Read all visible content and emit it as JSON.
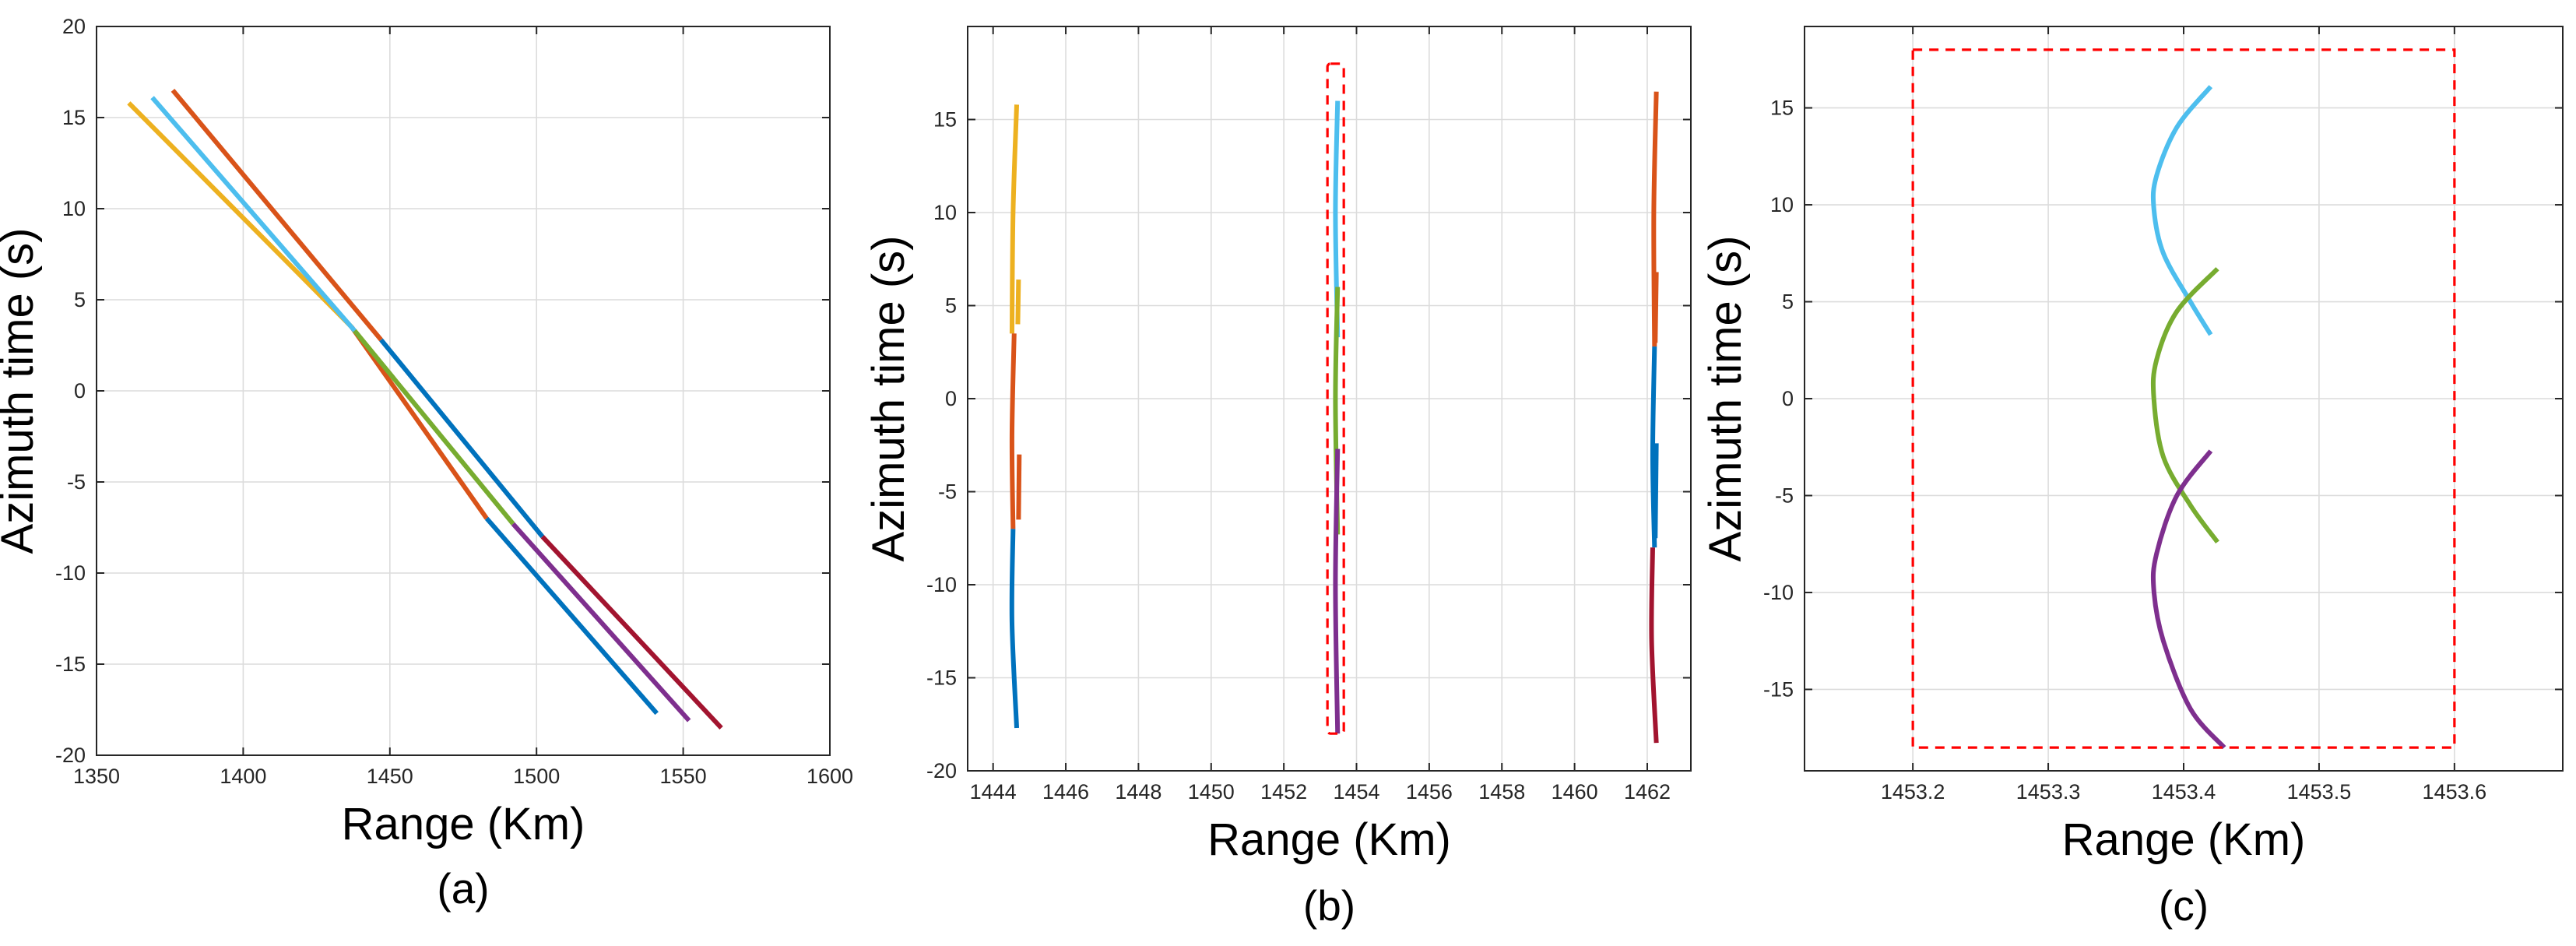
{
  "chart_data": [
    {
      "panel": "a",
      "type": "line",
      "caption": "(a)",
      "xlabel": "Range (Km)",
      "ylabel": "Azimuth time (s)",
      "xlim": [
        1350,
        1600
      ],
      "ylim": [
        -20,
        20
      ],
      "xticks": [
        1350,
        1400,
        1450,
        1500,
        1550,
        1600
      ],
      "yticks": [
        -20,
        -15,
        -10,
        -5,
        0,
        5,
        10,
        15,
        20
      ],
      "grid": true,
      "series": [
        {
          "name": "yellow",
          "color": "#edb120",
          "points": [
            [
              1361,
              15.8
            ],
            [
              1437,
              3.5
            ]
          ]
        },
        {
          "name": "orange-1",
          "color": "#d95319",
          "points": [
            [
              1437,
              3.5
            ],
            [
              1483,
              -7.0
            ]
          ]
        },
        {
          "name": "blue-1",
          "color": "#0072bd",
          "points": [
            [
              1483,
              -7.0
            ],
            [
              1541,
              -17.7
            ]
          ]
        },
        {
          "name": "cyan",
          "color": "#4dbeee",
          "points": [
            [
              1369,
              16.1
            ],
            [
              1438,
              3.3
            ]
          ]
        },
        {
          "name": "green",
          "color": "#77ac30",
          "points": [
            [
              1438,
              3.3
            ],
            [
              1492,
              -7.3
            ]
          ]
        },
        {
          "name": "purple",
          "color": "#7e2f8e",
          "points": [
            [
              1492,
              -7.3
            ],
            [
              1552,
              -18.1
            ]
          ]
        },
        {
          "name": "orange-2",
          "color": "#d95319",
          "points": [
            [
              1376,
              16.5
            ],
            [
              1447,
              2.8
            ]
          ]
        },
        {
          "name": "blue-2",
          "color": "#0072bd",
          "points": [
            [
              1447,
              2.8
            ],
            [
              1502,
              -8.0
            ]
          ]
        },
        {
          "name": "darkred",
          "color": "#a2142f",
          "points": [
            [
              1502,
              -8.0
            ],
            [
              1563,
              -18.5
            ]
          ]
        }
      ],
      "annotations": []
    },
    {
      "panel": "b",
      "type": "line",
      "caption": "(b)",
      "xlabel": "Range (Km)",
      "ylabel": "Azimuth time (s)",
      "xlim": [
        1443.3,
        1463.2
      ],
      "ylim": [
        -20,
        20
      ],
      "xticks": [
        1444,
        1446,
        1448,
        1450,
        1452,
        1454,
        1456,
        1458,
        1460,
        1462
      ],
      "yticks": [
        -20,
        -15,
        -10,
        -5,
        0,
        5,
        10,
        15
      ],
      "grid": true,
      "series": [
        {
          "name": "yellow",
          "color": "#edb120",
          "points": [
            [
              1444.65,
              15.8
            ],
            [
              1444.55,
              10
            ],
            [
              1444.52,
              3.5
            ]
          ]
        },
        {
          "name": "yellow-b",
          "color": "#edb120",
          "points": [
            [
              1444.7,
              6.4
            ],
            [
              1444.68,
              4.0
            ]
          ]
        },
        {
          "name": "orange-1",
          "color": "#d95319",
          "points": [
            [
              1444.58,
              3.5
            ],
            [
              1444.52,
              -2
            ],
            [
              1444.55,
              -7.0
            ]
          ]
        },
        {
          "name": "orange-1b",
          "color": "#d95319",
          "points": [
            [
              1444.72,
              -3.0
            ],
            [
              1444.7,
              -6.5
            ]
          ]
        },
        {
          "name": "blue-1",
          "color": "#0072bd",
          "points": [
            [
              1444.55,
              -7.0
            ],
            [
              1444.52,
              -12
            ],
            [
              1444.65,
              -17.7
            ]
          ]
        },
        {
          "name": "cyan",
          "color": "#4dbeee",
          "points": [
            [
              1453.48,
              16.0
            ],
            [
              1453.42,
              10
            ],
            [
              1453.48,
              3.3
            ]
          ]
        },
        {
          "name": "green",
          "color": "#77ac30",
          "points": [
            [
              1453.48,
              6.0
            ],
            [
              1453.42,
              0
            ],
            [
              1453.48,
              -7.3
            ]
          ]
        },
        {
          "name": "purple",
          "color": "#7e2f8e",
          "points": [
            [
              1453.48,
              -2.7
            ],
            [
              1453.42,
              -10
            ],
            [
              1453.48,
              -18.0
            ]
          ]
        },
        {
          "name": "orange-2",
          "color": "#d95319",
          "points": [
            [
              1462.25,
              16.5
            ],
            [
              1462.18,
              10
            ],
            [
              1462.2,
              2.8
            ]
          ]
        },
        {
          "name": "orange-2b",
          "color": "#d95319",
          "points": [
            [
              1462.25,
              6.8
            ],
            [
              1462.22,
              3.0
            ]
          ]
        },
        {
          "name": "blue-2",
          "color": "#0072bd",
          "points": [
            [
              1462.2,
              2.8
            ],
            [
              1462.15,
              -3
            ],
            [
              1462.2,
              -8.0
            ]
          ]
        },
        {
          "name": "blue-2b",
          "color": "#0072bd",
          "points": [
            [
              1462.25,
              -2.4
            ],
            [
              1462.22,
              -7.5
            ]
          ]
        },
        {
          "name": "darkred",
          "color": "#a2142f",
          "points": [
            [
              1462.15,
              -8.0
            ],
            [
              1462.12,
              -13
            ],
            [
              1462.25,
              -18.5
            ]
          ]
        }
      ],
      "annotations": [
        {
          "type": "dashed-rect",
          "color": "#ff0000",
          "x": [
            1453.2,
            1453.65
          ],
          "y": [
            -18,
            18
          ]
        }
      ]
    },
    {
      "panel": "c",
      "type": "line",
      "caption": "(c)",
      "xlabel": "Range (Km)",
      "ylabel": "Azimuth time (s)",
      "xlim": [
        1453.12,
        1453.68
      ],
      "ylim": [
        -19.2,
        19.2
      ],
      "xticks": [
        1453.2,
        1453.3,
        1453.4,
        1453.5,
        1453.6
      ],
      "yticks": [
        -15,
        -10,
        -5,
        0,
        5,
        10,
        15
      ],
      "grid": true,
      "series": [
        {
          "name": "cyan",
          "color": "#4dbeee",
          "points": [
            [
              1453.42,
              16.1
            ],
            [
              1453.395,
              14
            ],
            [
              1453.38,
              11.5
            ],
            [
              1453.378,
              9.8
            ],
            [
              1453.385,
              7.5
            ],
            [
              1453.405,
              5
            ],
            [
              1453.42,
              3.3
            ]
          ]
        },
        {
          "name": "green",
          "color": "#77ac30",
          "points": [
            [
              1453.425,
              6.7
            ],
            [
              1453.395,
              4.5
            ],
            [
              1453.38,
              2
            ],
            [
              1453.378,
              0
            ],
            [
              1453.385,
              -3
            ],
            [
              1453.405,
              -5.5
            ],
            [
              1453.425,
              -7.4
            ]
          ]
        },
        {
          "name": "purple",
          "color": "#7e2f8e",
          "points": [
            [
              1453.42,
              -2.7
            ],
            [
              1453.395,
              -5
            ],
            [
              1453.38,
              -8
            ],
            [
              1453.378,
              -9.9
            ],
            [
              1453.385,
              -12.5
            ],
            [
              1453.405,
              -16
            ],
            [
              1453.43,
              -18.0
            ]
          ]
        }
      ],
      "annotations": [
        {
          "type": "dashed-rect",
          "color": "#ff0000",
          "x": [
            1453.2,
            1453.6
          ],
          "y": [
            -18,
            18
          ]
        }
      ]
    }
  ]
}
